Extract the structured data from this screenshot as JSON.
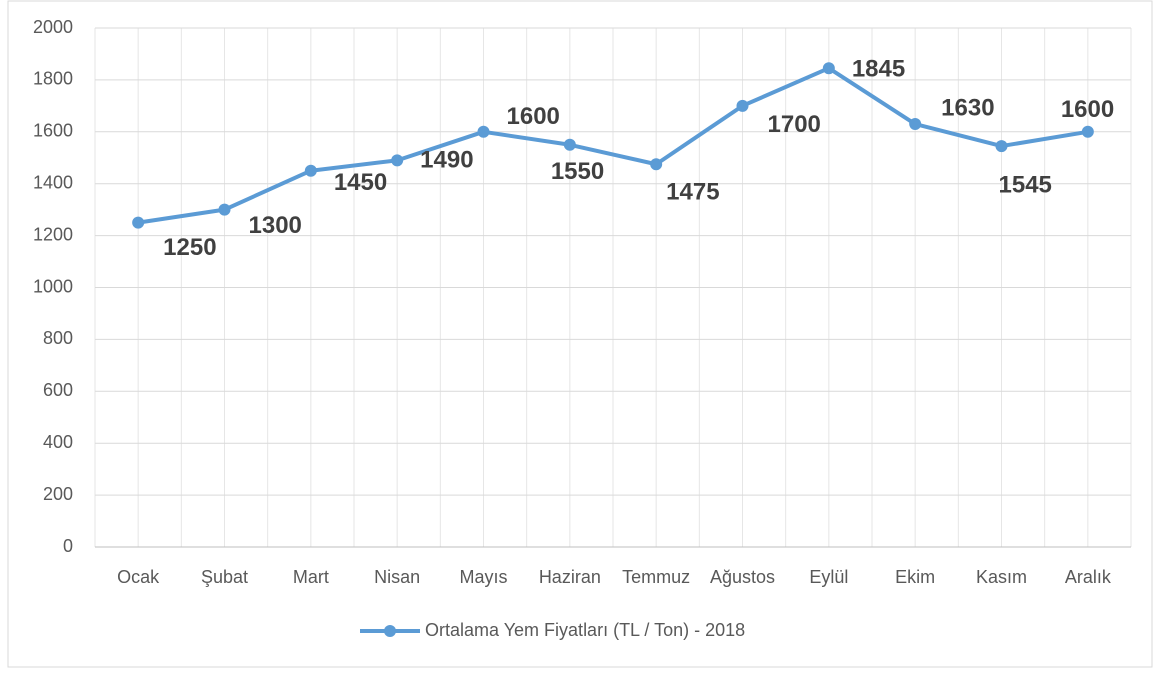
{
  "chart_data": {
    "type": "line",
    "categories": [
      "Ocak",
      "Şubat",
      "Mart",
      "Nisan",
      "Mayıs",
      "Haziran",
      "Temmuz",
      "Ağustos",
      "Eylül",
      "Ekim",
      "Kasım",
      "Aralık"
    ],
    "series": [
      {
        "name": "Ortalama Yem Fiyatları (TL / Ton) - 2018",
        "color": "#5b9bd5",
        "values": [
          1250,
          1300,
          1450,
          1490,
          1600,
          1550,
          1475,
          1700,
          1845,
          1630,
          1545,
          1600
        ]
      }
    ],
    "ylim": [
      0,
      2000
    ],
    "yticks": [
      0,
      200,
      400,
      600,
      800,
      1000,
      1200,
      1400,
      1600,
      1800,
      2000
    ],
    "grid": true,
    "legend": "bottom"
  }
}
